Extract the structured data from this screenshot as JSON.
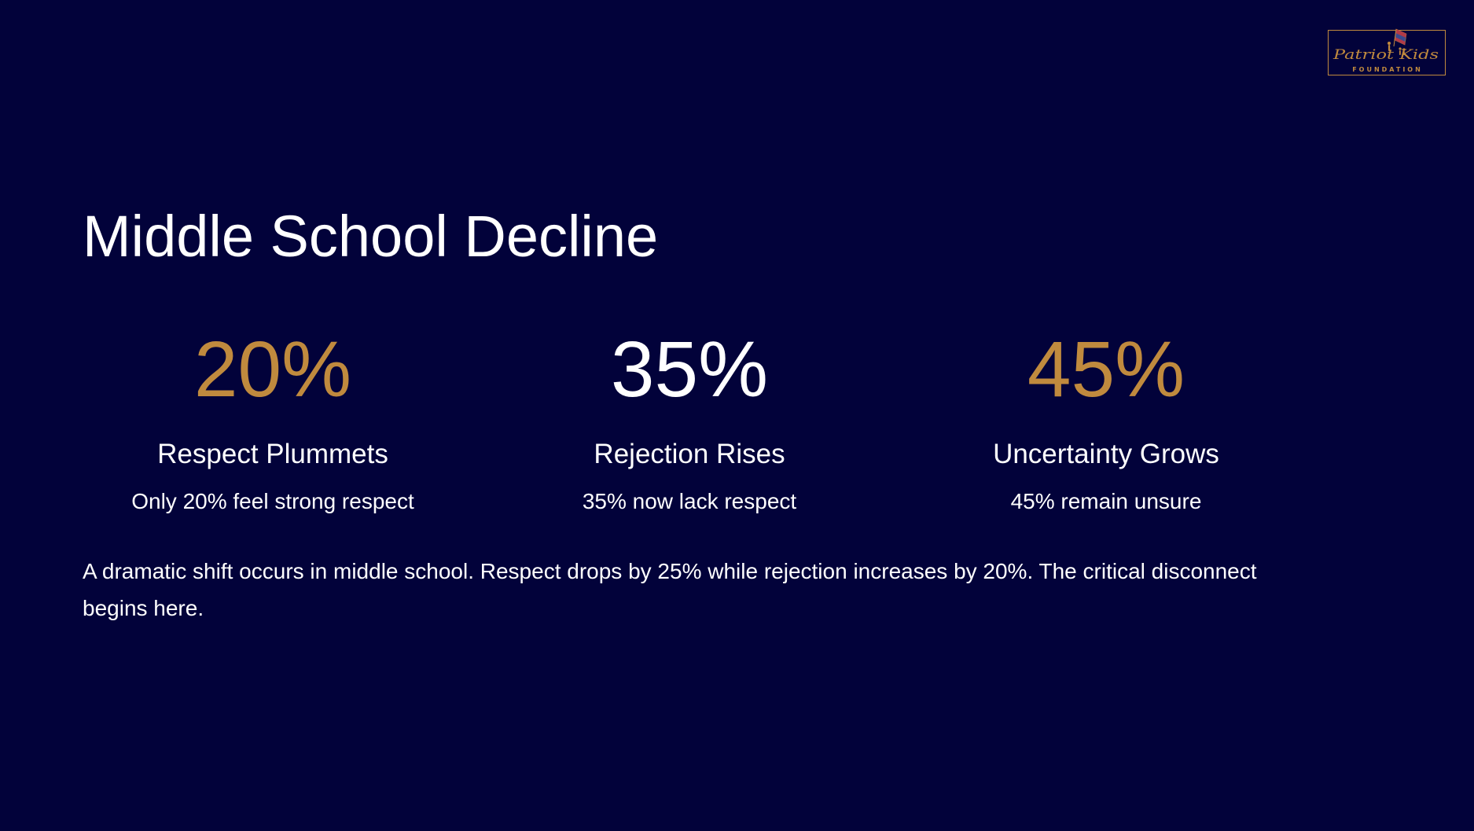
{
  "slide": {
    "title": "Middle School Decline",
    "background_color": "#02023a",
    "accent_color": "#c08a3e",
    "text_color": "#ffffff"
  },
  "logo": {
    "icon": "patriot-kids-foundation-logo",
    "script_text": "Patriot Kids",
    "subtitle": "FOUNDATION"
  },
  "stats": [
    {
      "value": "20%",
      "heading": "Respect Plummets",
      "description": "Only 20% feel strong respect",
      "value_color": "#c08a3e"
    },
    {
      "value": "35%",
      "heading": "Rejection Rises",
      "description": "35% now lack respect",
      "value_color": "#ffffff"
    },
    {
      "value": "45%",
      "heading": "Uncertainty Grows",
      "description": "45% remain unsure",
      "value_color": "#c08a3e"
    }
  ],
  "body": {
    "text": "A dramatic shift occurs in middle school. Respect drops by 25% while rejection increases by 20%. The critical disconnect begins here."
  }
}
